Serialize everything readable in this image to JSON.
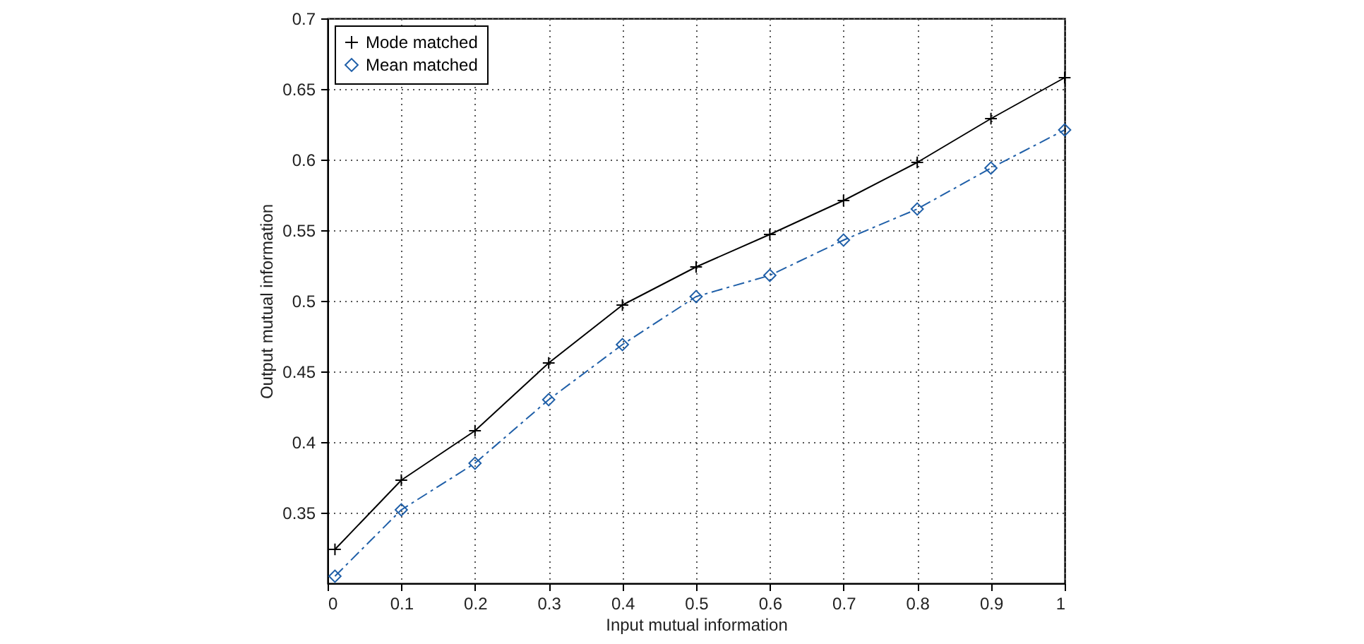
{
  "chart_data": {
    "type": "line",
    "xlabel": "Input mutual information",
    "ylabel": "Output mutual information",
    "x": [
      0.01,
      0.1,
      0.2,
      0.3,
      0.4,
      0.5,
      0.6,
      0.7,
      0.8,
      0.9,
      1
    ],
    "series": [
      {
        "name": "Mode matched",
        "color": "#000000",
        "marker": "cross",
        "line_style": "solid",
        "values": [
          0.324,
          0.373,
          0.408,
          0.456,
          0.497,
          0.524,
          0.547,
          0.571,
          0.598,
          0.629,
          0.658
        ]
      },
      {
        "name": "Mean matched",
        "color": "#1f5fa8",
        "marker": "diamond",
        "line_style": "dashed",
        "values": [
          0.305,
          0.352,
          0.385,
          0.43,
          0.469,
          0.503,
          0.518,
          0.543,
          0.565,
          0.594,
          0.621
        ]
      }
    ],
    "xlim": [
      0,
      1
    ],
    "xticks": [
      0,
      0.1,
      0.2,
      0.3,
      0.4,
      0.5,
      0.6,
      0.7,
      0.8,
      0.9,
      1
    ],
    "ylim": [
      0.3,
      0.7
    ],
    "yticks": [
      0.35,
      0.4,
      0.45,
      0.5,
      0.55,
      0.6,
      0.65,
      0.7
    ],
    "grid": true,
    "legend": "top left"
  }
}
